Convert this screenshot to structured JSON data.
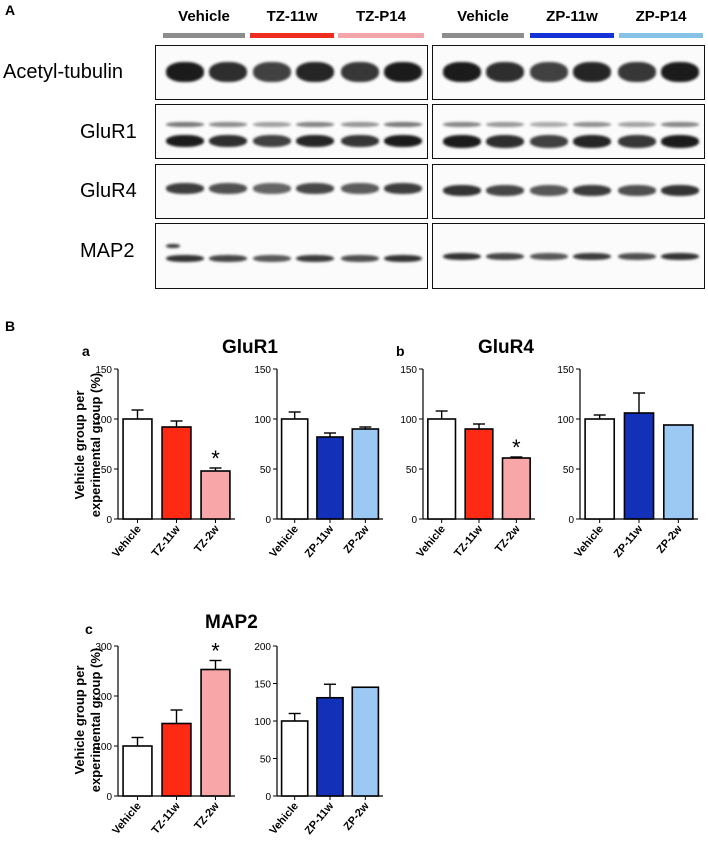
{
  "panel_a": {
    "letter": "A",
    "groups_left": [
      {
        "label": "Vehicle",
        "color": "#8c8c8c"
      },
      {
        "label": "TZ-11w",
        "color": "#ee2d1f"
      },
      {
        "label": "TZ-P14",
        "color": "#f2a6aa"
      }
    ],
    "groups_right": [
      {
        "label": "Vehicle",
        "color": "#8c8c8c"
      },
      {
        "label": "ZP-11w",
        "color": "#1433d6"
      },
      {
        "label": "ZP-P14",
        "color": "#86c2e6"
      }
    ],
    "rows": [
      "Acetyl-tubulin",
      "GluR1",
      "GluR4",
      "MAP2"
    ]
  },
  "panel_b": {
    "letter": "B",
    "sub_a": {
      "letter": "a",
      "title": "GluR1"
    },
    "sub_b": {
      "letter": "b",
      "title": "GluR4"
    },
    "sub_c": {
      "letter": "c",
      "title": "MAP2"
    },
    "ylabel_line1": "Vehicle group per",
    "ylabel_line2": "experimental group (%)",
    "significance_mark": "*"
  },
  "chart_data": [
    {
      "id": "glur1_tz",
      "type": "bar",
      "categories": [
        "Vehicle",
        "TZ-11w",
        "TZ-2w"
      ],
      "values": [
        100,
        92,
        48
      ],
      "errors": [
        9,
        6,
        3
      ],
      "colors": [
        "#ffffff",
        "#ff2a14",
        "#f8a6a8"
      ],
      "ylim": [
        0,
        150
      ],
      "yticks": [
        0,
        50,
        100,
        150
      ],
      "significant": [
        false,
        false,
        true
      ]
    },
    {
      "id": "glur1_zp",
      "type": "bar",
      "categories": [
        "Vehicle",
        "ZP-11w",
        "ZP-2w"
      ],
      "values": [
        100,
        82,
        90
      ],
      "errors": [
        7,
        4,
        2
      ],
      "colors": [
        "#ffffff",
        "#1230b8",
        "#9cc8f4"
      ],
      "ylim": [
        0,
        150
      ],
      "yticks": [
        0,
        50,
        100,
        150
      ],
      "significant": [
        false,
        false,
        false
      ]
    },
    {
      "id": "glur4_tz",
      "type": "bar",
      "categories": [
        "Vehicle",
        "TZ-11w",
        "TZ-2w"
      ],
      "values": [
        100,
        90,
        61
      ],
      "errors": [
        8,
        5,
        1
      ],
      "colors": [
        "#ffffff",
        "#ff2a14",
        "#f8a6a8"
      ],
      "ylim": [
        0,
        150
      ],
      "yticks": [
        0,
        50,
        100,
        150
      ],
      "significant": [
        false,
        false,
        true
      ]
    },
    {
      "id": "glur4_zp",
      "type": "bar",
      "categories": [
        "Vehicle",
        "ZP-11w",
        "ZP-2w"
      ],
      "values": [
        100,
        106,
        94
      ],
      "errors": [
        4,
        20,
        0
      ],
      "colors": [
        "#ffffff",
        "#1230b8",
        "#9cc8f4"
      ],
      "ylim": [
        0,
        150
      ],
      "yticks": [
        0,
        50,
        100,
        150
      ],
      "significant": [
        false,
        false,
        false
      ]
    },
    {
      "id": "map2_tz",
      "type": "bar",
      "categories": [
        "Vehicle",
        "TZ-11w",
        "TZ-2w"
      ],
      "values": [
        100,
        145,
        253
      ],
      "errors": [
        17,
        27,
        18
      ],
      "colors": [
        "#ffffff",
        "#ff2a14",
        "#f8a6a8"
      ],
      "ylim": [
        0,
        300
      ],
      "yticks": [
        0,
        100,
        200,
        300
      ],
      "significant": [
        false,
        false,
        true
      ]
    },
    {
      "id": "map2_zp",
      "type": "bar",
      "categories": [
        "Vehicle",
        "ZP-11w",
        "ZP-2w"
      ],
      "values": [
        100,
        131,
        145
      ],
      "errors": [
        10,
        18,
        0
      ],
      "colors": [
        "#ffffff",
        "#1230b8",
        "#9cc8f4"
      ],
      "ylim": [
        0,
        200
      ],
      "yticks": [
        0,
        50,
        100,
        150,
        200
      ],
      "significant": [
        false,
        false,
        false
      ]
    }
  ]
}
